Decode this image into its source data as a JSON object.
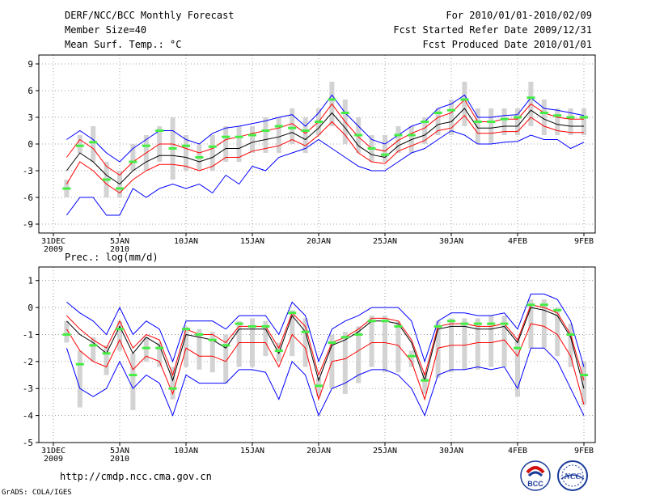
{
  "header": {
    "title": "DERF/NCC/BCC Monthly Forecast",
    "member_size": "Member Size=40",
    "variable": "Mean Surf. Temp.: °C",
    "period": "For 2010/01/01-2010/02/09",
    "started": "Fcst Started Refer Date 2009/12/31",
    "produced": "Fcst Produced Date 2010/01/01"
  },
  "footer": {
    "url": "http://cmdp.ncc.cma.gov.cn",
    "grads": "GrADS: COLA/IGES",
    "logo_left_text": "BCC",
    "logo_right_text": "NCC"
  },
  "colors": {
    "outer": "#0000ff",
    "inner": "#ff0000",
    "mean": "#000000",
    "box": "#d3d3d3",
    "dash": "#44ee44"
  },
  "chart_data": [
    {
      "type": "line",
      "title": "Mean Surf. Temp.: °C",
      "ylim": [
        -10,
        10
      ],
      "yticks": [
        -9,
        -6,
        -3,
        0,
        3,
        6,
        9
      ],
      "xticks": [
        {
          "day": 0,
          "label": "31DEC",
          "sub": "2009"
        },
        {
          "day": 5,
          "label": "5JAN",
          "sub": "2010"
        },
        {
          "day": 10,
          "label": "10JAN"
        },
        {
          "day": 15,
          "label": "15JAN"
        },
        {
          "day": 20,
          "label": "20JAN"
        },
        {
          "day": 25,
          "label": "25JAN"
        },
        {
          "day": 30,
          "label": "30JAN"
        },
        {
          "day": 35,
          "label": "4FEB"
        },
        {
          "day": 40,
          "label": "9FEB"
        }
      ],
      "days": [
        1,
        2,
        3,
        4,
        5,
        6,
        7,
        8,
        9,
        10,
        11,
        12,
        13,
        14,
        15,
        16,
        17,
        18,
        19,
        20,
        21,
        22,
        23,
        24,
        25,
        26,
        27,
        28,
        29,
        30,
        31,
        32,
        33,
        34,
        35,
        36,
        37,
        38,
        39,
        40
      ],
      "series": [
        {
          "name": "max",
          "values": [
            0.5,
            1.5,
            0.5,
            -1.0,
            -2.0,
            -0.5,
            0.5,
            1.5,
            1.5,
            0.5,
            0.0,
            1.2,
            1.8,
            2.0,
            2.3,
            2.6,
            3.0,
            3.3,
            2.0,
            3.5,
            5.5,
            3.5,
            2.0,
            0.5,
            0.0,
            1.0,
            2.0,
            2.5,
            4.0,
            4.5,
            5.5,
            3.0,
            3.0,
            3.2,
            3.3,
            5.2,
            4.0,
            3.8,
            3.5,
            3.2
          ]
        },
        {
          "name": "upper",
          "values": [
            -1.5,
            0.5,
            -0.5,
            -2.5,
            -3.5,
            -2.0,
            -1.0,
            0.0,
            0.0,
            -0.5,
            -1.0,
            -0.5,
            0.5,
            0.8,
            1.2,
            1.5,
            1.8,
            2.3,
            1.2,
            2.5,
            4.5,
            2.5,
            0.8,
            -0.5,
            -0.8,
            0.4,
            1.2,
            1.8,
            3.0,
            3.5,
            5.0,
            2.5,
            2.5,
            2.8,
            2.8,
            4.5,
            3.5,
            3.0,
            2.8,
            2.8
          ]
        },
        {
          "name": "mean",
          "values": [
            -3.0,
            -1.0,
            -2.0,
            -3.5,
            -4.5,
            -3.0,
            -2.0,
            -1.3,
            -1.3,
            -1.5,
            -2.0,
            -1.5,
            -0.5,
            -0.5,
            0.2,
            0.5,
            0.8,
            1.3,
            0.5,
            1.8,
            3.5,
            1.8,
            -0.2,
            -1.2,
            -1.5,
            -0.2,
            0.5,
            1.0,
            2.2,
            2.5,
            4.0,
            1.8,
            1.8,
            2.0,
            2.0,
            3.8,
            2.8,
            2.2,
            2.0,
            2.0
          ]
        },
        {
          "name": "lower",
          "values": [
            -4.5,
            -2.0,
            -3.0,
            -4.5,
            -5.5,
            -4.0,
            -3.0,
            -2.3,
            -2.3,
            -2.5,
            -3.0,
            -2.5,
            -1.5,
            -1.5,
            -0.8,
            -0.5,
            -0.2,
            0.5,
            -0.2,
            1.0,
            2.5,
            1.0,
            -1.0,
            -2.0,
            -2.2,
            -0.8,
            -0.2,
            0.4,
            1.5,
            1.8,
            3.2,
            1.2,
            1.2,
            1.4,
            1.4,
            3.0,
            2.0,
            1.5,
            1.3,
            1.3
          ]
        },
        {
          "name": "min",
          "values": [
            -8.0,
            -6.0,
            -6.0,
            -8.0,
            -8.0,
            -5.0,
            -6.0,
            -5.0,
            -4.5,
            -5.0,
            -4.5,
            -5.5,
            -3.5,
            -4.5,
            -2.5,
            -3.0,
            -1.5,
            -1.0,
            -0.5,
            0.5,
            -0.5,
            -1.5,
            -2.5,
            -3.0,
            -3.0,
            -2.0,
            -1.0,
            -0.5,
            0.5,
            1.5,
            1.0,
            0.0,
            0.0,
            0.2,
            0.3,
            1.0,
            0.5,
            0.5,
            -0.5,
            0.2
          ]
        }
      ],
      "obs": [
        -5.0,
        -0.2,
        0.2,
        -4.0,
        -5.0,
        -2.0,
        -0.2,
        1.5,
        -0.5,
        -0.2,
        -1.5,
        -0.3,
        0.8,
        0.8,
        1.0,
        1.5,
        2.0,
        1.8,
        1.5,
        2.5,
        5.0,
        3.5,
        1.0,
        -0.5,
        -1.2,
        1.0,
        1.0,
        2.5,
        3.5,
        3.8,
        5.0,
        2.5,
        2.5,
        2.8,
        3.0,
        5.2,
        3.5,
        3.2,
        3.0,
        3.0
      ],
      "boxes": [
        [
          -6,
          -4
        ],
        [
          -1,
          1
        ],
        [
          -2,
          2
        ],
        [
          -6,
          -2
        ],
        [
          -6,
          -3
        ],
        [
          -3,
          0
        ],
        [
          -3,
          1
        ],
        [
          -2,
          2
        ],
        [
          -4,
          3
        ],
        [
          -3,
          1
        ],
        [
          -3,
          0
        ],
        [
          -3,
          1
        ],
        [
          -2,
          2
        ],
        [
          -2,
          2
        ],
        [
          -1,
          2
        ],
        [
          -1,
          3
        ],
        [
          -1,
          3
        ],
        [
          0,
          4
        ],
        [
          -1,
          3
        ],
        [
          1,
          4
        ],
        [
          2,
          7
        ],
        [
          0,
          5
        ],
        [
          -1,
          3
        ],
        [
          -2,
          1
        ],
        [
          -2,
          1
        ],
        [
          -1,
          2
        ],
        [
          -1,
          2
        ],
        [
          0,
          3
        ],
        [
          1,
          4
        ],
        [
          1,
          5
        ],
        [
          2,
          7
        ],
        [
          0,
          4
        ],
        [
          0,
          4
        ],
        [
          1,
          4
        ],
        [
          1,
          4
        ],
        [
          2,
          7
        ],
        [
          1,
          5
        ],
        [
          1,
          4
        ],
        [
          1,
          4
        ],
        [
          1,
          4
        ]
      ]
    },
    {
      "type": "line",
      "title": "Prec.: log(mm/d)",
      "ylim": [
        -5,
        1.5
      ],
      "yticks": [
        -5,
        -4,
        -3,
        -2,
        -1,
        0,
        1
      ],
      "xticks": [
        {
          "day": 0,
          "label": "31DEC",
          "sub": "2009"
        },
        {
          "day": 5,
          "label": "5JAN",
          "sub": "2010"
        },
        {
          "day": 10,
          "label": "10JAN"
        },
        {
          "day": 15,
          "label": "15JAN"
        },
        {
          "day": 20,
          "label": "20JAN"
        },
        {
          "day": 25,
          "label": "25JAN"
        },
        {
          "day": 30,
          "label": "30JAN"
        },
        {
          "day": 35,
          "label": "4FEB"
        },
        {
          "day": 40,
          "label": "9FEB"
        }
      ],
      "days": [
        1,
        2,
        3,
        4,
        5,
        6,
        7,
        8,
        9,
        10,
        11,
        12,
        13,
        14,
        15,
        16,
        17,
        18,
        19,
        20,
        21,
        22,
        23,
        24,
        25,
        26,
        27,
        28,
        29,
        30,
        31,
        32,
        33,
        34,
        35,
        36,
        37,
        38,
        39,
        40
      ],
      "series": [
        {
          "name": "max",
          "values": [
            0.2,
            -0.2,
            -0.5,
            -1.0,
            0.0,
            -1.0,
            -0.5,
            -0.8,
            -2.0,
            -0.5,
            -0.5,
            -0.5,
            -0.8,
            -0.3,
            -0.3,
            -0.3,
            -1.0,
            0.2,
            -0.3,
            -2.0,
            -0.8,
            -0.5,
            -0.3,
            0.0,
            0.0,
            0.0,
            -0.5,
            -2.0,
            -0.5,
            -0.2,
            -0.2,
            -0.3,
            -0.3,
            -0.2,
            -0.8,
            0.5,
            0.5,
            0.3,
            -0.5,
            -2.2
          ]
        },
        {
          "name": "upper",
          "values": [
            -0.3,
            -0.8,
            -1.2,
            -1.5,
            -0.5,
            -1.5,
            -1.0,
            -1.2,
            -2.5,
            -0.8,
            -1.0,
            -1.0,
            -1.3,
            -0.7,
            -0.7,
            -0.7,
            -1.5,
            -0.2,
            -0.7,
            -2.5,
            -1.3,
            -1.1,
            -0.8,
            -0.4,
            -0.4,
            -0.5,
            -1.2,
            -2.5,
            -0.7,
            -0.6,
            -0.6,
            -0.7,
            -0.7,
            -0.6,
            -1.2,
            0.1,
            0.0,
            -0.2,
            -1.0,
            -2.7
          ]
        },
        {
          "name": "mean",
          "values": [
            -0.5,
            -1.0,
            -1.3,
            -1.7,
            -0.7,
            -1.7,
            -1.1,
            -1.4,
            -2.7,
            -1.0,
            -1.1,
            -1.2,
            -1.5,
            -0.8,
            -0.8,
            -0.8,
            -1.7,
            -0.3,
            -0.9,
            -2.7,
            -1.4,
            -1.2,
            -0.9,
            -0.5,
            -0.5,
            -0.6,
            -1.3,
            -2.7,
            -0.8,
            -0.7,
            -0.7,
            -0.8,
            -0.8,
            -0.7,
            -1.3,
            0.0,
            -0.1,
            -0.3,
            -1.1,
            -3.0
          ]
        },
        {
          "name": "lower",
          "values": [
            -0.8,
            -1.6,
            -2.0,
            -2.2,
            -1.2,
            -2.3,
            -1.8,
            -2.0,
            -3.2,
            -1.5,
            -1.8,
            -1.8,
            -2.0,
            -1.3,
            -1.3,
            -1.3,
            -2.2,
            -1.0,
            -1.5,
            -3.4,
            -2.0,
            -1.9,
            -1.6,
            -1.3,
            -1.3,
            -1.4,
            -2.0,
            -3.4,
            -1.5,
            -1.4,
            -1.4,
            -1.3,
            -1.3,
            -1.2,
            -1.8,
            -0.6,
            -0.7,
            -1.0,
            -1.8,
            -3.6
          ]
        },
        {
          "name": "min",
          "values": [
            -1.5,
            -3.0,
            -3.3,
            -3.0,
            -2.0,
            -3.0,
            -2.5,
            -2.8,
            -4.0,
            -2.5,
            -2.8,
            -2.8,
            -2.8,
            -2.3,
            -2.3,
            -2.4,
            -3.4,
            -2.0,
            -2.5,
            -4.0,
            -3.0,
            -2.8,
            -2.5,
            -2.3,
            -2.3,
            -2.5,
            -3.0,
            -4.0,
            -2.5,
            -2.3,
            -2.3,
            -2.2,
            -2.3,
            -2.2,
            -3.0,
            -1.5,
            -1.5,
            -2.0,
            -3.0,
            -4.0
          ]
        }
      ],
      "obs": [
        -1.0,
        -2.1,
        -1.4,
        -1.7,
        -0.8,
        -2.5,
        -1.5,
        -1.5,
        -3.0,
        -0.8,
        -1.0,
        -1.2,
        -1.4,
        -0.6,
        -0.7,
        -0.7,
        -1.6,
        -0.2,
        -0.9,
        -2.9,
        -1.3,
        -1.1,
        -1.0,
        -0.5,
        -0.5,
        -0.7,
        -1.8,
        -2.7,
        -0.7,
        -0.5,
        -0.6,
        -0.6,
        -0.6,
        -0.6,
        -1.5,
        0.1,
        0.1,
        -0.1,
        -1.0,
        -2.5
      ],
      "boxes": [
        [
          -1.3,
          -0.5
        ],
        [
          -3.7,
          -1.6
        ],
        [
          -2.0,
          -1.1
        ],
        [
          -2.5,
          -1.4
        ],
        [
          -1.6,
          -0.5
        ],
        [
          -3.8,
          -1.7
        ],
        [
          -2.0,
          -1.1
        ],
        [
          -2.2,
          -1.3
        ],
        [
          -3.4,
          -2.2
        ],
        [
          -2.2,
          -0.7
        ],
        [
          -2.3,
          -0.8
        ],
        [
          -2.4,
          -0.9
        ],
        [
          -2.8,
          -1.0
        ],
        [
          -2.2,
          -0.5
        ],
        [
          -2.2,
          -0.4
        ],
        [
          -1.8,
          -0.5
        ],
        [
          -2.0,
          -1.3
        ],
        [
          -1.8,
          -0.1
        ],
        [
          -2.2,
          -0.4
        ],
        [
          -3.3,
          -2.6
        ],
        [
          -3.0,
          -1.0
        ],
        [
          -3.2,
          -0.9
        ],
        [
          -2.8,
          -0.7
        ],
        [
          -2.2,
          -0.3
        ],
        [
          -2.4,
          -0.3
        ],
        [
          -2.4,
          -0.5
        ],
        [
          -2.2,
          -1.6
        ],
        [
          -3.2,
          -2.4
        ],
        [
          -2.6,
          -0.5
        ],
        [
          -2.4,
          -0.4
        ],
        [
          -2.3,
          -0.4
        ],
        [
          -2.3,
          -0.4
        ],
        [
          -2.2,
          -0.3
        ],
        [
          -2.2,
          -0.3
        ],
        [
          -3.3,
          -1.2
        ],
        [
          -1.5,
          0.3
        ],
        [
          -1.5,
          0.3
        ],
        [
          -1.8,
          0.0
        ],
        [
          -2.2,
          -0.6
        ],
        [
          -3.6,
          -2.0
        ]
      ]
    }
  ]
}
